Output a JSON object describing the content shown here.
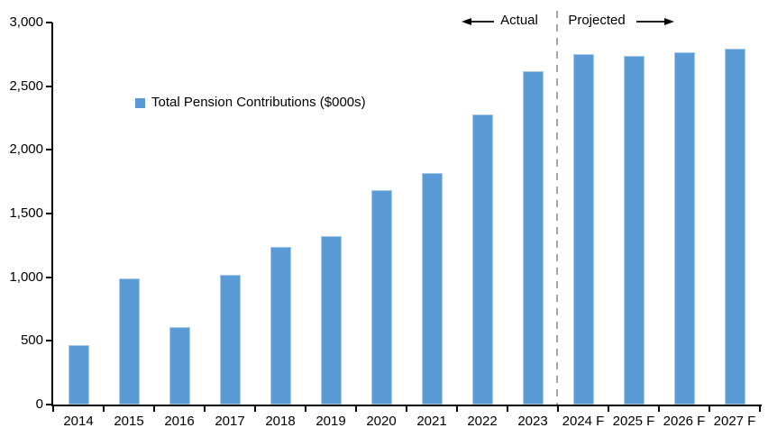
{
  "chart_data": {
    "type": "bar",
    "title": "",
    "xlabel": "",
    "ylabel": "",
    "categories": [
      "2014",
      "2015",
      "2016",
      "2017",
      "2018",
      "2019",
      "2020",
      "2021",
      "2022",
      "2023",
      "2024 F",
      "2025 F",
      "2026 F",
      "2027 F"
    ],
    "values": [
      470,
      990,
      610,
      1020,
      1235,
      1320,
      1685,
      1815,
      2280,
      2615,
      2750,
      2740,
      2765,
      2795
    ],
    "ylim": [
      0,
      3000
    ],
    "y_tick_values": [
      0,
      500,
      1000,
      1500,
      2000,
      2500,
      3000
    ],
    "y_tick_labels": [
      "0",
      "500",
      "1,000",
      "1,500",
      "2,000",
      "2,500",
      "3,000"
    ],
    "grid": false,
    "legend": {
      "label": "Total Pension Contributions ($000s)",
      "position": "inside-top-left"
    },
    "annotations": {
      "actual_label": "Actual",
      "projected_label": "Projected",
      "divider_after_category": "2023"
    },
    "colors": {
      "bar_fill": "#5B9BD5",
      "bar_border": "#A9CAEA",
      "divider": "#A6A6A6",
      "axis": "#000000",
      "text": "#000000"
    }
  }
}
